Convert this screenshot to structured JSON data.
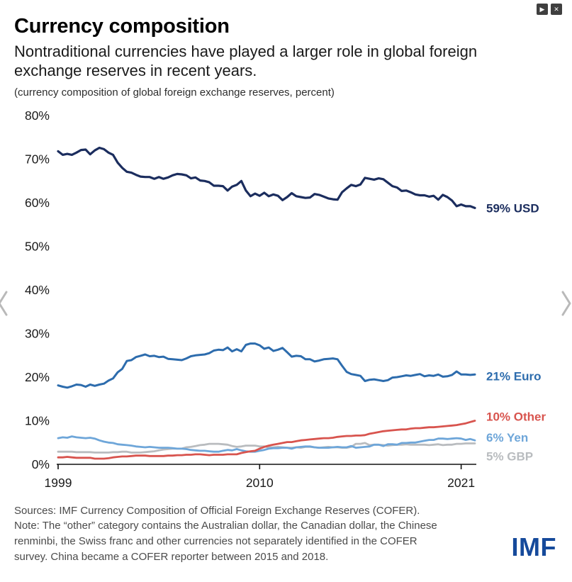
{
  "window": {
    "play_icon": "▶",
    "close_icon": "✕"
  },
  "chart_data": {
    "type": "line",
    "title": "Currency composition",
    "subtitle": "Nontraditional currencies have played a larger role in global foreign exchange reserves in recent years.",
    "caption": "(currency composition of global foreign exchange reserves, percent)",
    "xlabel": "",
    "ylabel": "percent",
    "x_start": 1999,
    "x_step": 0.25,
    "x_ticks": [
      1999,
      2010,
      2021
    ],
    "ylim": [
      0,
      80
    ],
    "y_ticks": [
      0,
      10,
      20,
      30,
      40,
      50,
      60,
      70,
      80
    ],
    "y_tick_suffix": "%",
    "grid": false,
    "legend_position": "end-of-line-labels",
    "series": [
      {
        "id": "gbp",
        "name": "British pound",
        "label": "5% GBP",
        "color": "#b9bcbf",
        "stroke_width": 2.8,
        "label_dy": 18,
        "values": [
          2.9,
          2.9,
          2.9,
          2.9,
          2.8,
          2.8,
          2.8,
          2.8,
          2.7,
          2.7,
          2.7,
          2.7,
          2.8,
          2.8,
          2.9,
          2.9,
          2.7,
          2.7,
          2.7,
          2.8,
          2.9,
          3.0,
          3.2,
          3.4,
          3.5,
          3.6,
          3.6,
          3.6,
          3.9,
          4.0,
          4.2,
          4.4,
          4.5,
          4.7,
          4.7,
          4.7,
          4.6,
          4.5,
          4.2,
          4.0,
          4.1,
          4.3,
          4.3,
          4.3,
          4.1,
          4.1,
          3.9,
          3.9,
          4.0,
          3.9,
          3.8,
          3.8,
          3.9,
          3.8,
          4.0,
          4.0,
          3.9,
          3.8,
          3.9,
          4.0,
          3.9,
          3.9,
          3.8,
          3.8,
          4.0,
          4.7,
          4.7,
          4.9,
          4.4,
          4.5,
          4.5,
          4.4,
          4.3,
          4.4,
          4.5,
          4.5,
          4.6,
          4.5,
          4.5,
          4.5,
          4.5,
          4.4,
          4.5,
          4.6,
          4.4,
          4.5,
          4.5,
          4.7,
          4.7,
          4.8,
          4.8,
          4.8
        ]
      },
      {
        "id": "yen",
        "name": "Japanese yen",
        "label": "6% Yen",
        "color": "#6ea6d9",
        "stroke_width": 2.8,
        "label_dy": -4,
        "values": [
          6.0,
          6.2,
          6.1,
          6.4,
          6.2,
          6.1,
          6.0,
          6.1,
          5.9,
          5.5,
          5.2,
          5.0,
          4.9,
          4.6,
          4.5,
          4.4,
          4.3,
          4.1,
          4.0,
          3.9,
          4.0,
          3.9,
          3.8,
          3.8,
          3.8,
          3.7,
          3.6,
          3.6,
          3.5,
          3.3,
          3.2,
          3.1,
          3.1,
          3.0,
          2.9,
          2.9,
          3.1,
          3.3,
          3.2,
          3.5,
          3.2,
          3.0,
          2.9,
          2.9,
          3.1,
          3.3,
          3.6,
          3.7,
          3.7,
          3.8,
          3.8,
          3.6,
          3.9,
          4.0,
          4.1,
          4.1,
          3.9,
          3.8,
          3.8,
          3.8,
          3.9,
          4.0,
          3.9,
          3.9,
          4.2,
          3.8,
          3.9,
          4.0,
          4.1,
          4.5,
          4.5,
          4.2,
          4.6,
          4.6,
          4.5,
          4.9,
          4.9,
          5.0,
          5.0,
          5.2,
          5.4,
          5.6,
          5.6,
          5.9,
          5.9,
          5.8,
          5.9,
          6.0,
          5.9,
          5.6,
          5.8,
          5.5
        ]
      },
      {
        "id": "other",
        "name": "Other currencies",
        "label": "10% Other",
        "color": "#d8544e",
        "stroke_width": 2.8,
        "label_dy": -6,
        "values": [
          1.6,
          1.6,
          1.7,
          1.6,
          1.5,
          1.5,
          1.5,
          1.5,
          1.3,
          1.3,
          1.3,
          1.4,
          1.6,
          1.7,
          1.8,
          1.8,
          1.9,
          2.0,
          2.0,
          2.0,
          1.9,
          1.9,
          1.9,
          1.9,
          2.0,
          2.0,
          2.1,
          2.1,
          2.2,
          2.2,
          2.3,
          2.3,
          2.2,
          2.1,
          2.2,
          2.2,
          2.2,
          2.3,
          2.3,
          2.3,
          2.6,
          2.8,
          3.0,
          3.1,
          3.6,
          4.0,
          4.3,
          4.5,
          4.7,
          4.9,
          5.1,
          5.1,
          5.3,
          5.5,
          5.6,
          5.7,
          5.8,
          5.9,
          6.0,
          6.0,
          6.1,
          6.3,
          6.4,
          6.5,
          6.5,
          6.6,
          6.6,
          6.7,
          7.0,
          7.2,
          7.4,
          7.6,
          7.7,
          7.8,
          7.9,
          8.0,
          8.0,
          8.2,
          8.3,
          8.3,
          8.4,
          8.5,
          8.5,
          8.6,
          8.7,
          8.8,
          8.9,
          9.0,
          9.2,
          9.4,
          9.7,
          10.0
        ]
      },
      {
        "id": "euro",
        "name": "Euro",
        "label": "21% Euro",
        "color": "#2d6cad",
        "stroke_width": 3,
        "label_dy": 2,
        "values": [
          18.1,
          17.8,
          17.6,
          17.9,
          18.3,
          18.2,
          17.8,
          18.3,
          18.0,
          18.3,
          18.5,
          19.2,
          19.7,
          21.1,
          21.9,
          23.7,
          23.9,
          24.6,
          24.9,
          25.2,
          24.8,
          24.9,
          24.6,
          24.7,
          24.2,
          24.1,
          24.0,
          23.9,
          24.3,
          24.8,
          25.0,
          25.1,
          25.2,
          25.5,
          26.1,
          26.3,
          26.2,
          26.8,
          25.9,
          26.4,
          25.9,
          27.4,
          27.7,
          27.7,
          27.3,
          26.5,
          26.8,
          26.0,
          26.3,
          26.7,
          25.7,
          24.7,
          24.9,
          24.8,
          24.1,
          24.1,
          23.6,
          23.8,
          24.1,
          24.2,
          24.3,
          24.1,
          22.6,
          21.2,
          20.7,
          20.5,
          20.3,
          19.1,
          19.4,
          19.5,
          19.3,
          19.1,
          19.3,
          19.9,
          20.0,
          20.2,
          20.4,
          20.3,
          20.5,
          20.7,
          20.2,
          20.4,
          20.3,
          20.6,
          20.1,
          20.2,
          20.5,
          21.3,
          20.6,
          20.6,
          20.5,
          20.6
        ]
      },
      {
        "id": "usd",
        "name": "US dollar",
        "label": "59% USD",
        "color": "#1b2d5e",
        "stroke_width": 3.2,
        "label_dy": 0,
        "values": [
          71.8,
          71.0,
          71.2,
          71.0,
          71.5,
          72.1,
          72.2,
          71.1,
          72.0,
          72.6,
          72.3,
          71.5,
          71.0,
          69.2,
          68.0,
          67.1,
          66.9,
          66.4,
          66.0,
          65.9,
          65.9,
          65.5,
          65.9,
          65.5,
          65.8,
          66.3,
          66.6,
          66.5,
          66.3,
          65.6,
          65.8,
          65.1,
          65.0,
          64.7,
          63.9,
          63.9,
          63.8,
          62.8,
          63.7,
          64.1,
          65.0,
          62.8,
          61.5,
          62.1,
          61.6,
          62.3,
          61.5,
          61.9,
          61.6,
          60.6,
          61.3,
          62.2,
          61.5,
          61.3,
          61.1,
          61.2,
          62.0,
          61.8,
          61.4,
          61.0,
          60.8,
          60.7,
          62.4,
          63.3,
          64.1,
          63.8,
          64.2,
          65.7,
          65.5,
          65.3,
          65.6,
          65.4,
          64.6,
          63.8,
          63.5,
          62.7,
          62.8,
          62.4,
          61.9,
          61.7,
          61.7,
          61.4,
          61.6,
          60.7,
          61.8,
          61.3,
          60.5,
          59.2,
          59.6,
          59.2,
          59.2,
          58.8
        ]
      }
    ]
  },
  "footer": {
    "sources": "Sources: IMF Currency Composition of Official Foreign Exchange Reserves (COFER).",
    "note": "Note: The “other” category contains the Australian dollar, the Canadian dollar, the Chinese renminbi, the Swiss franc and other currencies not separately identified in the COFER survey. China became a COFER reporter between 2015 and 2018.",
    "logo": "IMF",
    "logo_color": "#164a9b"
  }
}
